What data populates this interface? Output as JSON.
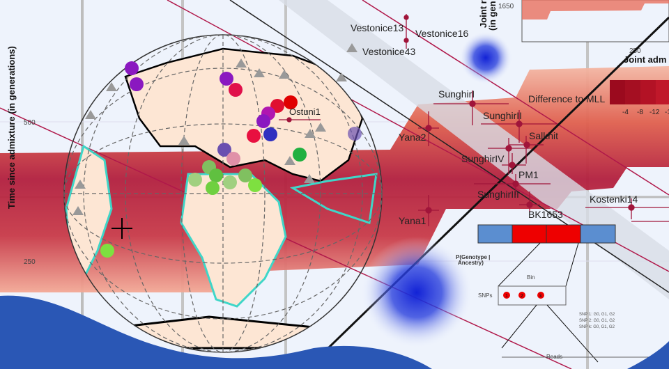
{
  "left_axis": {
    "label": "Time since admixture (in generations)",
    "ticks": [
      "500",
      "250"
    ]
  },
  "top_right_axis": {
    "label_line1": "Joint r",
    "label_line2": "(in gen",
    "tick": "1650",
    "xtick": "250",
    "xlabel": "Joint adm"
  },
  "legend": {
    "title": "Difference to MLL",
    "ticks": [
      "-4",
      "-8",
      "-12",
      "-1"
    ],
    "colors": [
      "#9b0a1e",
      "#a50f22",
      "#b31225",
      "#c0182a"
    ]
  },
  "samples": [
    {
      "name": "Vestonice13"
    },
    {
      "name": "Vestonice16"
    },
    {
      "name": "Vestonice43"
    },
    {
      "name": "SunghirI"
    },
    {
      "name": "SunghirII"
    },
    {
      "name": "Yana2"
    },
    {
      "name": "Salkhit"
    },
    {
      "name": "SunghirIV"
    },
    {
      "name": "PM1"
    },
    {
      "name": "SunghirIII"
    },
    {
      "name": "Kostenki14"
    },
    {
      "name": "BK1653"
    },
    {
      "name": "Yana1"
    },
    {
      "name": "Ostuni1"
    }
  ],
  "diagram": {
    "genotype_label_1": "P(Genotype |",
    "genotype_label_2": "Ancestry)",
    "bin_label": "Bin",
    "snps_label": "SNPs",
    "snp_markers": [
      "1",
      "2",
      "k"
    ],
    "snp_lines": [
      "SNP 1: G0, G1, G2",
      "SNP 2: G0, G1, G2",
      "SNP k: G0, G1, G2"
    ],
    "reads_label": "Reads"
  },
  "colors": {
    "background": "#eef3fc",
    "band": "#c0283c",
    "wave": "#2a57b5",
    "land": "#fde6d4",
    "coast": "#3fd6c8",
    "blob": "#1a2ad0"
  }
}
